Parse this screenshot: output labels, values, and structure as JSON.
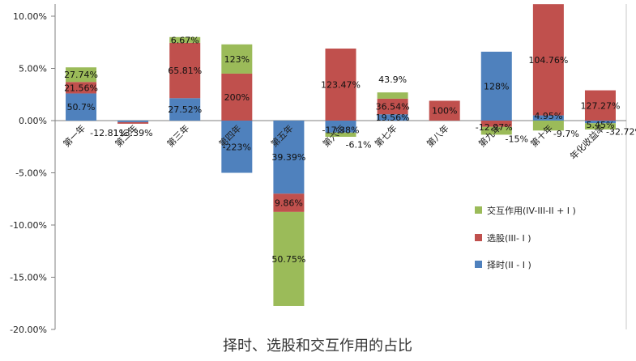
{
  "chart_data": {
    "type": "bar",
    "stacked": true,
    "title": "择时、选股和交互作用的占比",
    "ylim": [
      -20,
      10
    ],
    "ytick_values": [
      10,
      5,
      0,
      -5,
      -10,
      -15,
      -20
    ],
    "ytick_labels": [
      "10.00%",
      "5.00%",
      "0.00%",
      "-5.00%",
      "-10.00%",
      "-15.00%",
      "-20.00%"
    ],
    "grid": false,
    "categories": [
      "第一年",
      "第二年",
      "第三年",
      "第四年",
      "第五年",
      "第六年",
      "第七年",
      "第八年",
      "第九年",
      "第十年",
      "年化收益率"
    ],
    "series": [
      {
        "name": "择时(II - I )",
        "color": "#4f81bd",
        "values": [
          2.6,
          -0.15,
          2.15,
          -5.0,
          -7.0,
          -1.15,
          0.6,
          0,
          6.6,
          0.5,
          -0.25
        ],
        "labels": [
          "50.7%",
          "113.39%",
          "27.52%",
          "-223%",
          "39.39%",
          "-17.38%",
          "19.56%",
          "",
          "128%",
          "4.95%",
          "-32.72%"
        ]
      },
      {
        "name": "选股(III- I )",
        "color": "#c0504d",
        "values": [
          1.1,
          -0.15,
          5.3,
          4.5,
          -1.75,
          6.9,
          1.5,
          1.9,
          -0.6,
          10.65,
          2.9
        ],
        "labels": [
          "21.56%",
          "-12.81%",
          "65.81%",
          "200%",
          "9.86%",
          "123.47%",
          "36.54%",
          "100%",
          "-12.97%",
          "104.76%",
          "127.27%"
        ]
      },
      {
        "name": "交互作用(IV-III-II + I )",
        "color": "#9bbb59",
        "values": [
          1.4,
          0,
          0.55,
          2.8,
          -9.0,
          -0.4,
          0.6,
          0,
          -0.75,
          -0.95,
          -0.6
        ],
        "labels": [
          "27.74%",
          "",
          "6.67%",
          "123%",
          "50.75%",
          "-6.1%",
          "43.9%",
          "",
          "-15%",
          "-9.7%",
          "5.45%"
        ]
      }
    ],
    "legend": {
      "position": "right",
      "entries": [
        "交互作用(IV-III-II + I )",
        "选股(III- I )",
        "择时(II - I )"
      ]
    }
  }
}
